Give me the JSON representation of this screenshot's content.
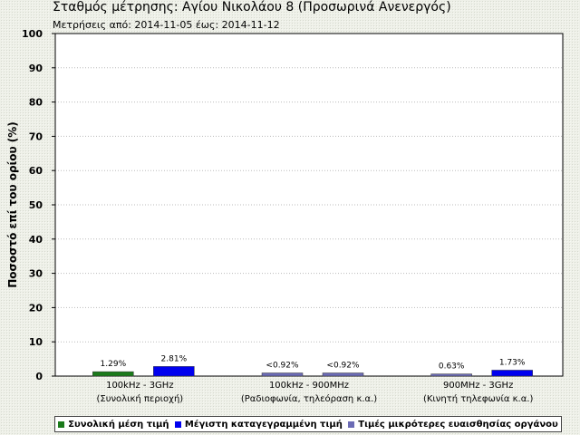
{
  "title": "Σταθμός μέτρησης: Αγίου Νικολάου 8 (Προσωρινά Ανενεργός)",
  "subtitle": "Μετρήσεις από: 2014-11-05 έως: 2014-11-12",
  "legend": [
    {
      "label": "Συνολική μέση τιμή",
      "color": "#1a7a1a"
    },
    {
      "label": "Μέγιστη καταγεγραμμένη τιμή",
      "color": "#0000ee"
    },
    {
      "label": "Τιμές μικρότερες ευαισθησίας οργάνου",
      "color": "#6b6bb5"
    }
  ],
  "chart_data": {
    "type": "bar",
    "ylabel": "Ποσοστό επί του ορίου (%)",
    "xlabel": "",
    "ylim": [
      0,
      100
    ],
    "yticks": [
      0,
      10,
      20,
      30,
      40,
      50,
      60,
      70,
      80,
      90,
      100
    ],
    "grid": true,
    "categories": [
      {
        "line1": "100kHz - 3GHz",
        "line2": "(Συνολική περιοχή)"
      },
      {
        "line1": "100kHz - 900MHz",
        "line2": "(Ραδιοφωνία, τηλεόραση κ.α.)"
      },
      {
        "line1": "900MHz - 3GHz",
        "line2": "(Κινητή τηλεφωνία κ.α.)"
      }
    ],
    "bars": [
      {
        "category": 0,
        "slot": 0,
        "value": 1.29,
        "label": "1.29%",
        "color": "#1a7a1a"
      },
      {
        "category": 0,
        "slot": 1,
        "value": 2.81,
        "label": "2.81%",
        "color": "#0000ee"
      },
      {
        "category": 1,
        "slot": 0,
        "value": 0.92,
        "label": "<0.92%",
        "color": "#6b6bb5"
      },
      {
        "category": 1,
        "slot": 1,
        "value": 0.92,
        "label": "<0.92%",
        "color": "#6b6bb5"
      },
      {
        "category": 2,
        "slot": 0,
        "value": 0.63,
        "label": "0.63%",
        "color": "#6b6bb5"
      },
      {
        "category": 2,
        "slot": 1,
        "value": 1.73,
        "label": "1.73%",
        "color": "#0000ee"
      }
    ]
  }
}
